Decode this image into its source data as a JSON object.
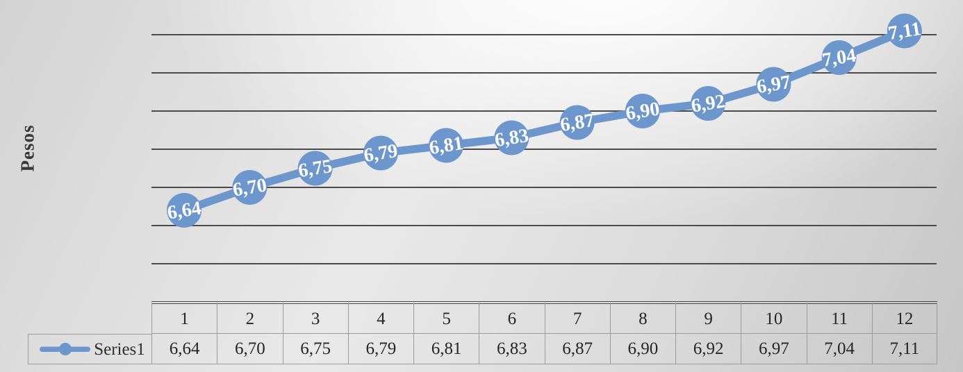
{
  "y_axis_title": "Pesos",
  "legend": {
    "label": "Series1"
  },
  "colors": {
    "series": "#6d96cc",
    "gridline": "#4a4a4a",
    "data_label_text": "#ffffff",
    "table_border": "#9b9b9b",
    "table_text": "#262626"
  },
  "chart_data": {
    "type": "line",
    "title": "",
    "ylabel": "Pesos",
    "xlabel": "",
    "categories": [
      "1",
      "2",
      "3",
      "4",
      "5",
      "6",
      "7",
      "8",
      "9",
      "10",
      "11",
      "12"
    ],
    "series": [
      {
        "name": "Series1",
        "values": [
          6.64,
          6.7,
          6.75,
          6.79,
          6.81,
          6.83,
          6.87,
          6.9,
          6.92,
          6.97,
          7.04,
          7.11
        ],
        "labels": [
          "6,64",
          "6,70",
          "6,75",
          "6,79",
          "6,81",
          "6,83",
          "6,87",
          "6,90",
          "6,92",
          "6,97",
          "7,04",
          "7,11"
        ]
      }
    ],
    "ylim": [
      6.4,
      7.2
    ],
    "gridline_step": 0.1,
    "grid": true,
    "y_tick_labels_visible": false,
    "legend_position": "data-table-left",
    "data_table": true,
    "decimal_separator": ","
  }
}
